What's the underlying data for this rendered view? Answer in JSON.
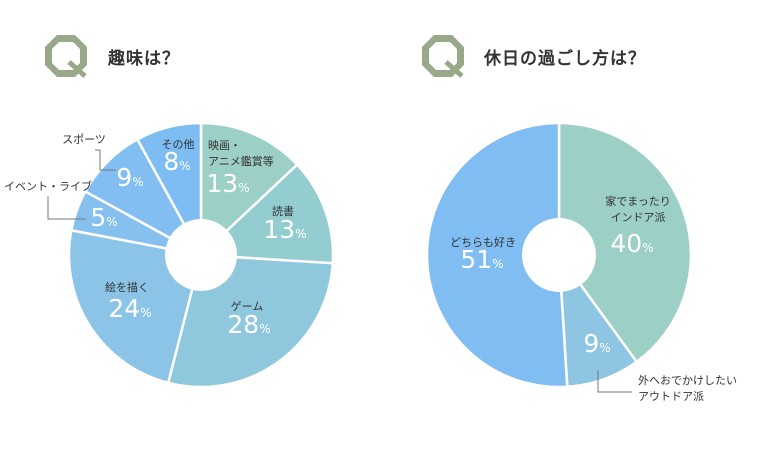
{
  "colors": {
    "accent": "#9aa88a",
    "slice_stroke": "#ffffff",
    "label_text": "#333333",
    "pct_text": "#ffffff",
    "leader_line": "#777777"
  },
  "questions": [
    {
      "title": "趣味は？",
      "icon": "q-octagon-icon",
      "icon_letter": "Q"
    },
    {
      "title": "休日の過ごし方は？",
      "icon": "q-octagon-icon",
      "icon_letter": "Q"
    }
  ],
  "chart_data": [
    {
      "type": "pie",
      "donut": true,
      "slices": [
        {
          "label_lines": [
            "映画・",
            "アニメ鑑賞等"
          ],
          "value": 13,
          "display": "13",
          "unit": "%",
          "color": "#9ccfc6"
        },
        {
          "label_lines": [
            "読書"
          ],
          "value": 13,
          "display": "13",
          "unit": "%",
          "color": "#93cdd0"
        },
        {
          "label_lines": [
            "ゲーム"
          ],
          "value": 28,
          "display": "28",
          "unit": "%",
          "color": "#8fc7dd"
        },
        {
          "label_lines": [
            "絵を描く"
          ],
          "value": 24,
          "display": "24",
          "unit": "%",
          "color": "#8cc4e8"
        },
        {
          "label_lines": [
            "イベント・ライブ"
          ],
          "value": 5,
          "display": "5",
          "unit": "%",
          "color": "#86c0ef"
        },
        {
          "label_lines": [
            "スポーツ"
          ],
          "value": 9,
          "display": "9",
          "unit": "%",
          "color": "#82bef2"
        },
        {
          "label_lines": [
            "その他"
          ],
          "value": 8,
          "display": "8",
          "unit": "%",
          "color": "#7ebdf4"
        }
      ]
    },
    {
      "type": "pie",
      "donut": true,
      "slices": [
        {
          "label_lines": [
            "家でまったり",
            "インドア派"
          ],
          "value": 40,
          "display": "40",
          "unit": "%",
          "color": "#9ccfc6"
        },
        {
          "label_lines": [
            "外へおでかけしたい",
            "アウトドア派"
          ],
          "value": 9,
          "display": "9",
          "unit": "%",
          "color": "#8ec5e3"
        },
        {
          "label_lines": [
            "どちらも好き"
          ],
          "value": 51,
          "display": "51",
          "unit": "%",
          "color": "#80bdf3"
        }
      ]
    }
  ]
}
